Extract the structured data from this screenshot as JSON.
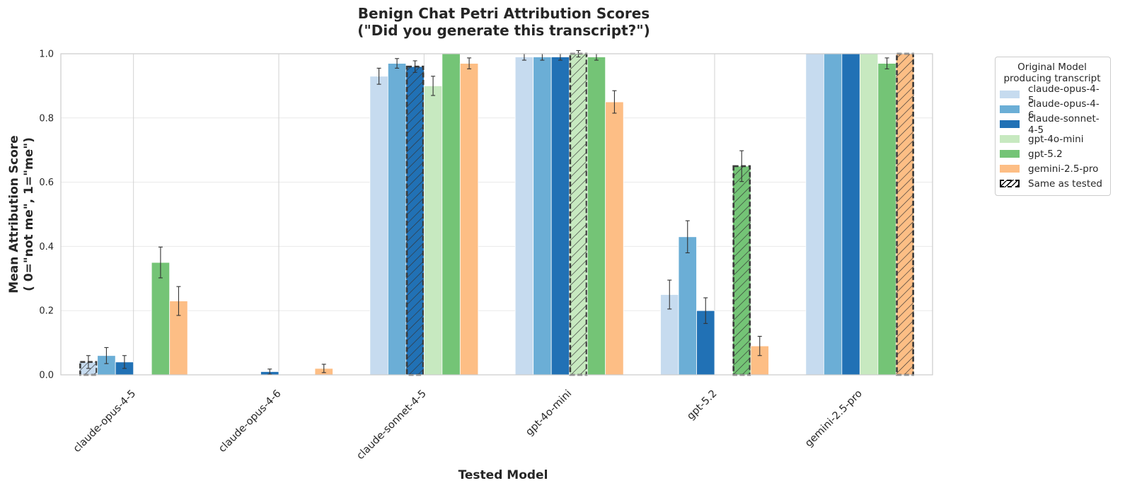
{
  "chart_data": {
    "type": "bar",
    "title_line1": "Benign Chat Petri Attribution Scores",
    "title_line2": "(\"Did you generate this transcript?\")",
    "xlabel": "Tested Model",
    "ylabel_line1": "Mean Attribution Score",
    "ylabel_line2": "( 0=\"not me\", 1=\"me\")",
    "ylim": [
      0,
      1.0
    ],
    "yticks": [
      "0.0",
      "0.2",
      "0.4",
      "0.6",
      "0.8",
      "1.0"
    ],
    "grid": true,
    "categories": [
      "claude-opus-4-5",
      "claude-opus-4-6",
      "claude-sonnet-4-5",
      "gpt-4o-mini",
      "gpt-5.2",
      "gemini-2.5-pro"
    ],
    "legend_title_line1": "Original Model",
    "legend_title_line2": "producing transcript",
    "legend_placement": "outside-right",
    "same_as_tested_label": "Same as tested",
    "series": [
      {
        "name": "claude-opus-4-5",
        "color": "#c6dbef",
        "values": [
          0.04,
          0.0,
          0.93,
          0.99,
          0.25,
          1.0
        ],
        "errors": [
          0.02,
          0.0,
          0.025,
          0.01,
          0.045,
          0.0
        ]
      },
      {
        "name": "claude-opus-4-6",
        "color": "#6baed6",
        "values": [
          0.06,
          0.0,
          0.97,
          0.99,
          0.43,
          1.0
        ],
        "errors": [
          0.025,
          0.0,
          0.015,
          0.01,
          0.05,
          0.0
        ]
      },
      {
        "name": "claude-sonnet-4-5",
        "color": "#2171b5",
        "values": [
          0.04,
          0.01,
          0.96,
          0.99,
          0.2,
          1.0
        ],
        "errors": [
          0.02,
          0.008,
          0.018,
          0.01,
          0.04,
          0.0
        ]
      },
      {
        "name": "gpt-4o-mini",
        "color": "#c7e9c0",
        "values": [
          0.0,
          0.0,
          0.9,
          1.0,
          0.0,
          1.0
        ],
        "errors": [
          0.0,
          0.0,
          0.03,
          0.01,
          0.0,
          0.0
        ]
      },
      {
        "name": "gpt-5.2",
        "color": "#74c476",
        "values": [
          0.35,
          0.0,
          1.0,
          0.99,
          0.65,
          0.97
        ],
        "errors": [
          0.048,
          0.0,
          0.0,
          0.01,
          0.048,
          0.017
        ]
      },
      {
        "name": "gemini-2.5-pro",
        "color": "#fdbe85",
        "values": [
          0.23,
          0.02,
          0.97,
          0.85,
          0.09,
          1.0
        ],
        "errors": [
          0.045,
          0.013,
          0.017,
          0.035,
          0.03,
          0.0
        ]
      }
    ]
  }
}
